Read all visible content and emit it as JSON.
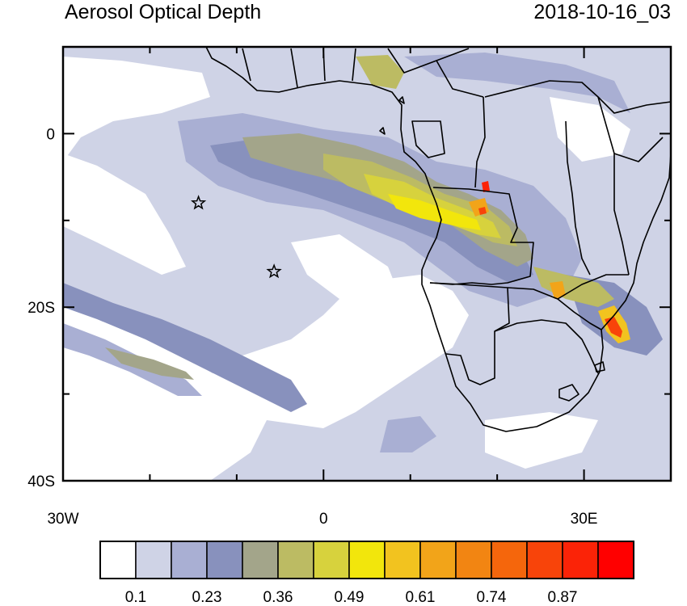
{
  "header": {
    "title": "Aerosol Optical Depth",
    "timestamp": "2018-10-16_03"
  },
  "axes": {
    "x_ticks": [
      {
        "lon": -30,
        "label": "30W"
      },
      {
        "lon": 0,
        "label": "0"
      },
      {
        "lon": 30,
        "label": "30E"
      }
    ],
    "y_ticks": [
      {
        "lat": 0,
        "label": "0"
      },
      {
        "lat": -20,
        "label": "20S"
      },
      {
        "lat": -40,
        "label": "40S"
      }
    ],
    "lon_range": [
      -30,
      40
    ],
    "lat_range": [
      -40,
      10
    ]
  },
  "markers": [
    {
      "name": "star",
      "lon": -14.4,
      "lat": -8.0
    },
    {
      "name": "star",
      "lon": -5.7,
      "lat": -15.9
    }
  ],
  "colorbar": {
    "colors": [
      "#ffffff",
      "#cfd3e6",
      "#a9afd3",
      "#8891bd",
      "#a3a58a",
      "#bcbb63",
      "#d7d23d",
      "#f2e60c",
      "#f2c31f",
      "#f2a419",
      "#f28512",
      "#f5660c",
      "#f8440a",
      "#fb2307",
      "#ff0000"
    ],
    "labels": [
      "0.1",
      "0.23",
      "0.36",
      "0.49",
      "0.61",
      "0.74",
      "0.87"
    ]
  }
}
